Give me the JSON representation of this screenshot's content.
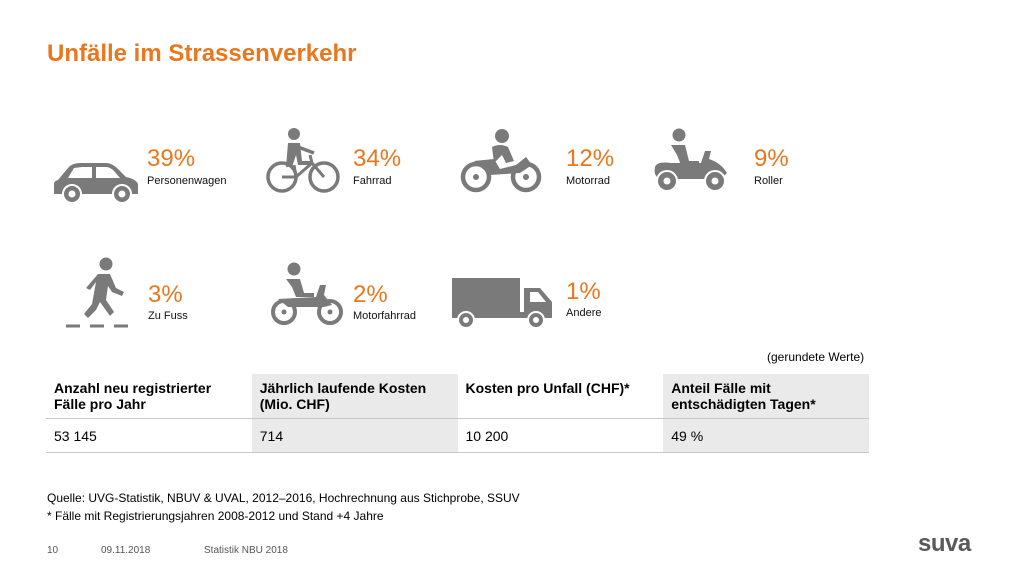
{
  "title": "Unfälle im Strassenverkehr",
  "colors": {
    "accent": "#e8771e",
    "icon": "#7a7a7a",
    "table_shade": "#eaeaea"
  },
  "categories": [
    {
      "icon": "car-icon",
      "percent": "39%",
      "label": "Personenwagen"
    },
    {
      "icon": "bicycle-icon",
      "percent": "34%",
      "label": "Fahrrad"
    },
    {
      "icon": "motorcycle-icon",
      "percent": "12%",
      "label": "Motorrad"
    },
    {
      "icon": "scooter-icon",
      "percent": "9%",
      "label": "Roller"
    },
    {
      "icon": "pedestrian-icon",
      "percent": "3%",
      "label": "Zu Fuss"
    },
    {
      "icon": "moped-icon",
      "percent": "2%",
      "label": "Motorfahrrad"
    },
    {
      "icon": "truck-icon",
      "percent": "1%",
      "label": "Andere"
    }
  ],
  "note": "(gerundete Werte)",
  "table": {
    "headers": [
      "Anzahl neu registrierter Fälle pro Jahr",
      "Jährlich laufende Kosten (Mio. CHF)",
      "Kosten pro Unfall (CHF)*",
      "Anteil Fälle mit entschädigten Tagen*"
    ],
    "values": [
      "53 145",
      "714",
      "10 200",
      "49 %"
    ]
  },
  "source": "Quelle: UVG-Statistik, NBUV & UVAL, 2012–2016, Hochrechnung aus Stichprobe, SSUV",
  "footnote": "* Fälle mit Registrierungsjahren 2008-2012 und Stand +4 Jahre",
  "footer": {
    "page": "10",
    "date": "09.11.2018",
    "doc": "Statistik NBU 2018"
  },
  "logo": "suva"
}
